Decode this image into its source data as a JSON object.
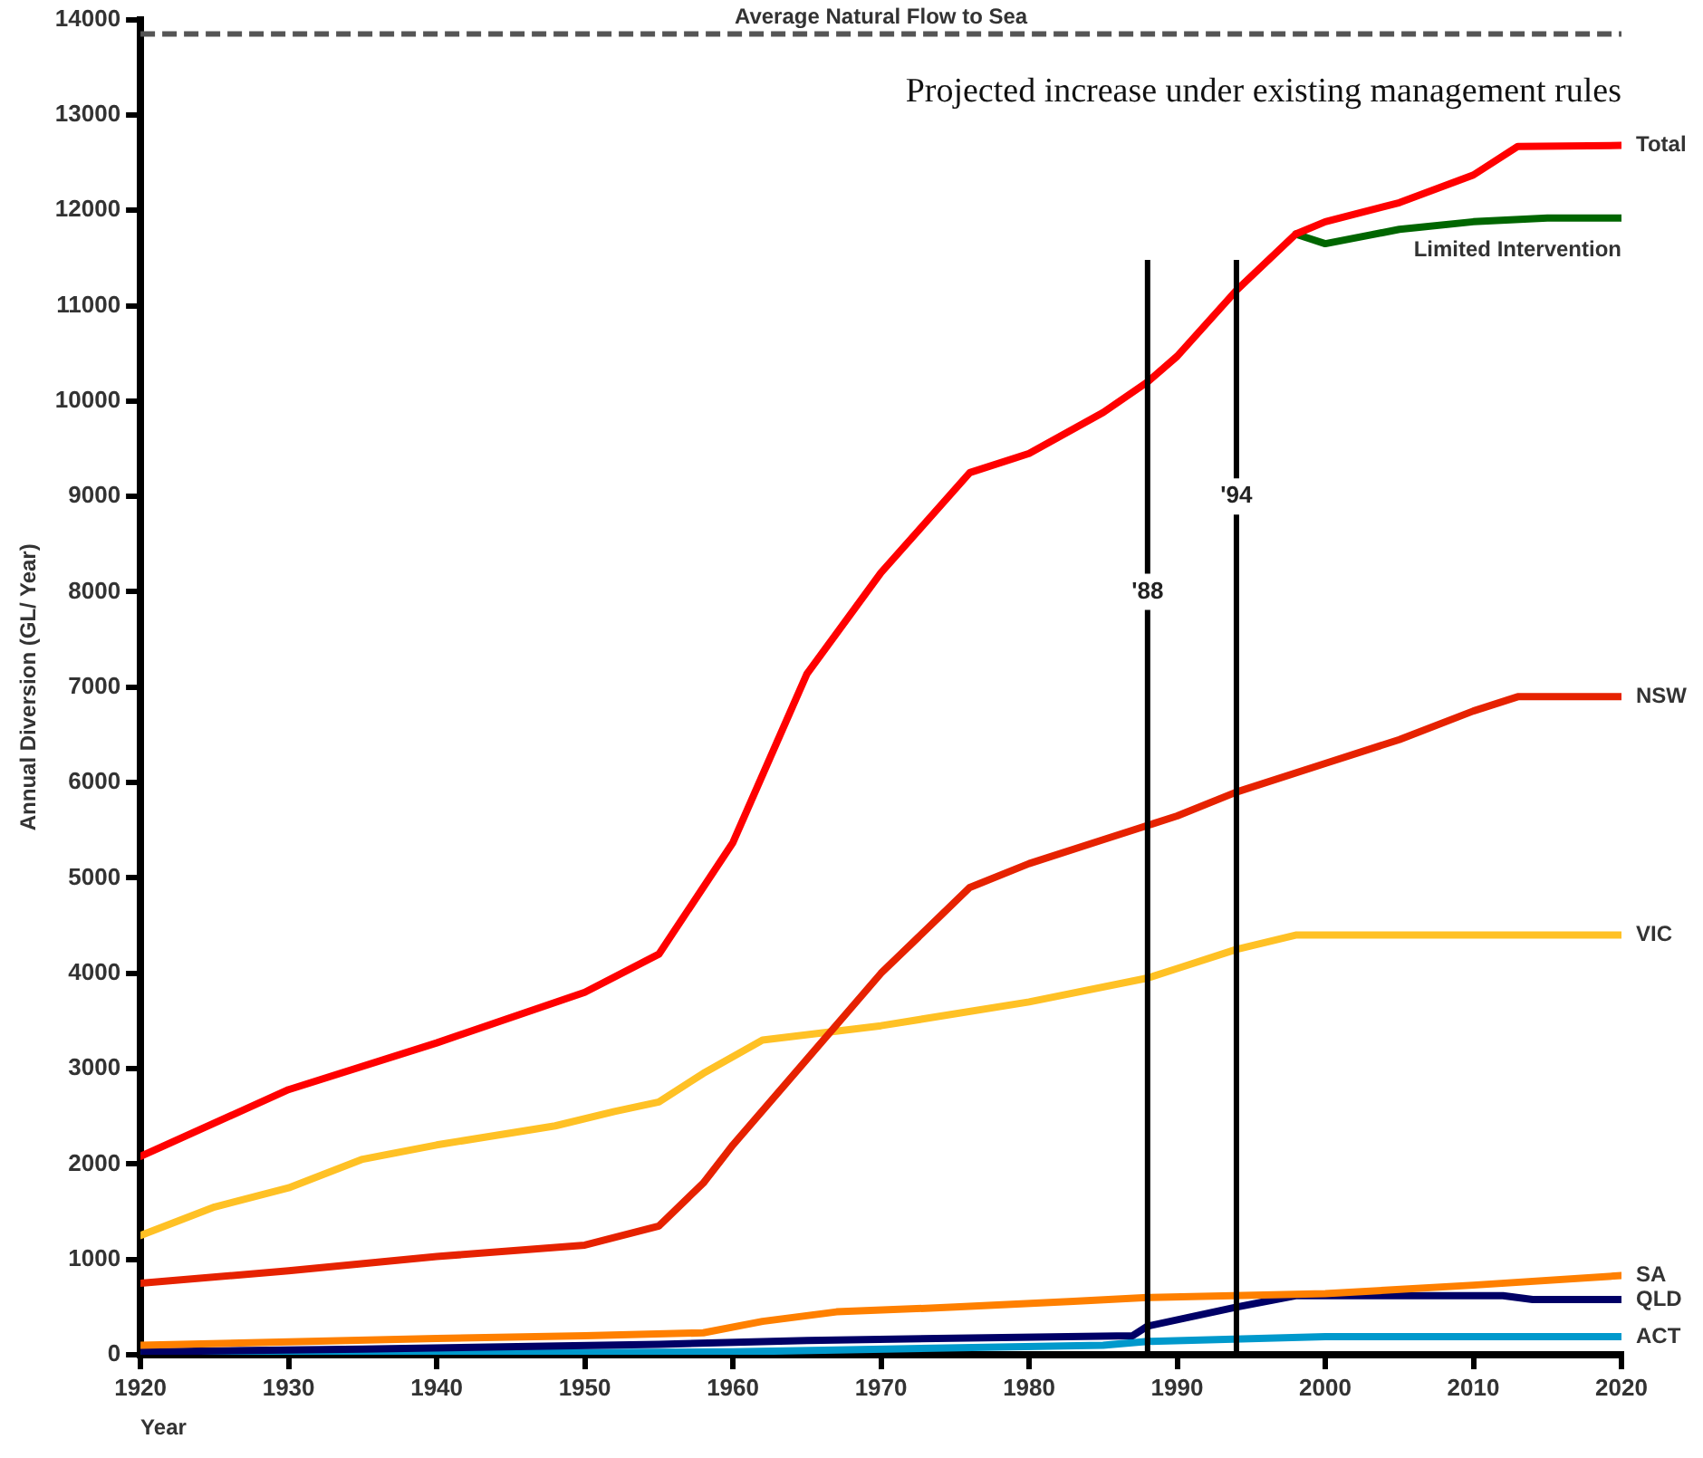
{
  "chart_data": {
    "type": "line",
    "xlabel": "Year",
    "ylabel": "Annual Diversion (GL/ Year)",
    "xlim": [
      1920,
      2020
    ],
    "xticks": [
      1920,
      1930,
      1940,
      1950,
      1960,
      1970,
      1980,
      1990,
      2000,
      2010,
      2020
    ],
    "ylim": [
      0,
      14000
    ],
    "yticks": [
      0,
      1000,
      2000,
      3000,
      4000,
      5000,
      6000,
      7000,
      8000,
      9000,
      10000,
      11000,
      12000,
      13000,
      14000
    ],
    "grid": false,
    "legend": false,
    "marker": "none",
    "line_style": "solid",
    "series": [
      {
        "name": "Total",
        "color": "#ff0000",
        "x": [
          1920,
          1930,
          1940,
          1950,
          1955,
          1960,
          1965,
          1970,
          1976,
          1980,
          1985,
          1988,
          1990,
          1994,
          1998,
          2000,
          2005,
          2010,
          2013,
          2020
        ],
        "values": [
          2080,
          2780,
          3270,
          3800,
          4200,
          5370,
          7140,
          8200,
          9250,
          9450,
          9880,
          10200,
          10470,
          11160,
          11750,
          11880,
          12080,
          12370,
          12670,
          12680
        ]
      },
      {
        "name": "Limited Intervention",
        "color": "#006600",
        "x": [
          1998,
          2000,
          2005,
          2010,
          2015,
          2020
        ],
        "values": [
          11750,
          11650,
          11800,
          11880,
          11920,
          11920
        ]
      },
      {
        "name": "NSW",
        "color": "#e62200",
        "x": [
          1920,
          1930,
          1940,
          1950,
          1955,
          1958,
          1960,
          1965,
          1970,
          1976,
          1980,
          1985,
          1988,
          1990,
          1994,
          2000,
          2005,
          2010,
          2013,
          2020
        ],
        "values": [
          750,
          880,
          1030,
          1150,
          1350,
          1800,
          2200,
          3100,
          4000,
          4900,
          5150,
          5400,
          5550,
          5650,
          5900,
          6200,
          6450,
          6750,
          6900,
          6900
        ]
      },
      {
        "name": "VIC",
        "color": "#ffc125",
        "x": [
          1920,
          1925,
          1930,
          1935,
          1940,
          1948,
          1952,
          1955,
          1958,
          1962,
          1970,
          1980,
          1988,
          1990,
          1994,
          1998,
          2020
        ],
        "values": [
          1250,
          1550,
          1750,
          2050,
          2200,
          2400,
          2550,
          2650,
          2950,
          3300,
          3450,
          3700,
          3950,
          4050,
          4250,
          4400,
          4400
        ]
      },
      {
        "name": "SA",
        "color": "#ff8000",
        "x": [
          1920,
          1940,
          1950,
          1958,
          1962,
          1967,
          1975,
          1983,
          1988,
          2000,
          2010,
          2020
        ],
        "values": [
          100,
          170,
          200,
          230,
          350,
          450,
          500,
          560,
          600,
          640,
          730,
          830
        ]
      },
      {
        "name": "QLD",
        "color": "#000066",
        "x": [
          1920,
          1935,
          1955,
          1965,
          1987,
          1988,
          1994,
          1998,
          2012,
          2014,
          2020
        ],
        "values": [
          30,
          60,
          110,
          150,
          200,
          300,
          500,
          620,
          620,
          580,
          580
        ]
      },
      {
        "name": "ACT",
        "color": "#0099cc",
        "x": [
          1920,
          1960,
          1967,
          1985,
          1988,
          2000,
          2020
        ],
        "values": [
          0,
          30,
          50,
          100,
          140,
          190,
          190
        ]
      }
    ],
    "ref_lines": [
      {
        "axis": "y",
        "value": 13850,
        "label": "Average Natural Flow to Sea",
        "line_style": "dashed",
        "color": "#555555"
      },
      {
        "axis": "x",
        "value": 1988,
        "color": "#000000"
      },
      {
        "axis": "x",
        "value": 1994,
        "color": "#000000"
      }
    ],
    "annotations": [
      "Projected increase under existing management rules",
      {
        "text": "'88",
        "x": 1988,
        "y": 8000
      },
      {
        "text": "'94",
        "x": 1994,
        "y": 9000
      }
    ]
  }
}
